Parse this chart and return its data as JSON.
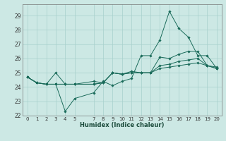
{
  "xlabel": "Humidex (Indice chaleur)",
  "xlim": [
    -0.5,
    20.5
  ],
  "ylim": [
    22.0,
    29.8
  ],
  "yticks": [
    22,
    23,
    24,
    25,
    26,
    27,
    28,
    29
  ],
  "xtick_positions": [
    0,
    1,
    2,
    3,
    4,
    5,
    7,
    8,
    9,
    10,
    11,
    12,
    13,
    14,
    15,
    16,
    17,
    18,
    19,
    20
  ],
  "xtick_labels": [
    "0",
    "1",
    "2",
    "3",
    "4",
    "5",
    "7",
    "8",
    "9",
    "10",
    "11",
    "12",
    "13",
    "14",
    "15",
    "16",
    "17",
    "18",
    "19",
    "20"
  ],
  "bg_color": "#cce8e4",
  "grid_color": "#a8d0cc",
  "line_color": "#1a6b5a",
  "series": [
    {
      "x": [
        0,
        1,
        2,
        3,
        4,
        5,
        7,
        8,
        9,
        10,
        11,
        12,
        13,
        14,
        15,
        16,
        17,
        18,
        19,
        20
      ],
      "y": [
        24.7,
        24.3,
        24.2,
        24.2,
        22.3,
        23.2,
        23.6,
        24.4,
        24.1,
        24.4,
        24.6,
        26.2,
        26.2,
        27.3,
        29.3,
        28.1,
        27.5,
        26.2,
        26.2,
        25.3
      ]
    },
    {
      "x": [
        0,
        1,
        2,
        3,
        4,
        5,
        7,
        8,
        9,
        10,
        11,
        12,
        13,
        14,
        15,
        16,
        17,
        18,
        19,
        20
      ],
      "y": [
        24.7,
        24.3,
        24.2,
        25.0,
        24.2,
        24.2,
        24.2,
        24.3,
        25.0,
        24.9,
        25.1,
        25.0,
        25.0,
        26.1,
        26.0,
        26.3,
        26.5,
        26.5,
        25.5,
        25.4
      ]
    },
    {
      "x": [
        0,
        1,
        2,
        3,
        4,
        5,
        7,
        8,
        9,
        10,
        11,
        12,
        13,
        14,
        15,
        16,
        17,
        18,
        19,
        20
      ],
      "y": [
        24.7,
        24.3,
        24.2,
        24.2,
        24.2,
        24.2,
        24.2,
        24.3,
        25.0,
        24.9,
        25.0,
        25.0,
        25.0,
        25.5,
        25.6,
        25.8,
        25.9,
        26.0,
        25.5,
        25.3
      ]
    },
    {
      "x": [
        0,
        1,
        2,
        3,
        4,
        5,
        7,
        8,
        9,
        10,
        11,
        12,
        13,
        14,
        15,
        16,
        17,
        18,
        19,
        20
      ],
      "y": [
        24.7,
        24.3,
        24.2,
        24.2,
        24.2,
        24.2,
        24.4,
        24.3,
        25.0,
        24.9,
        25.0,
        25.0,
        25.0,
        25.3,
        25.4,
        25.5,
        25.6,
        25.7,
        25.5,
        25.3
      ]
    }
  ]
}
